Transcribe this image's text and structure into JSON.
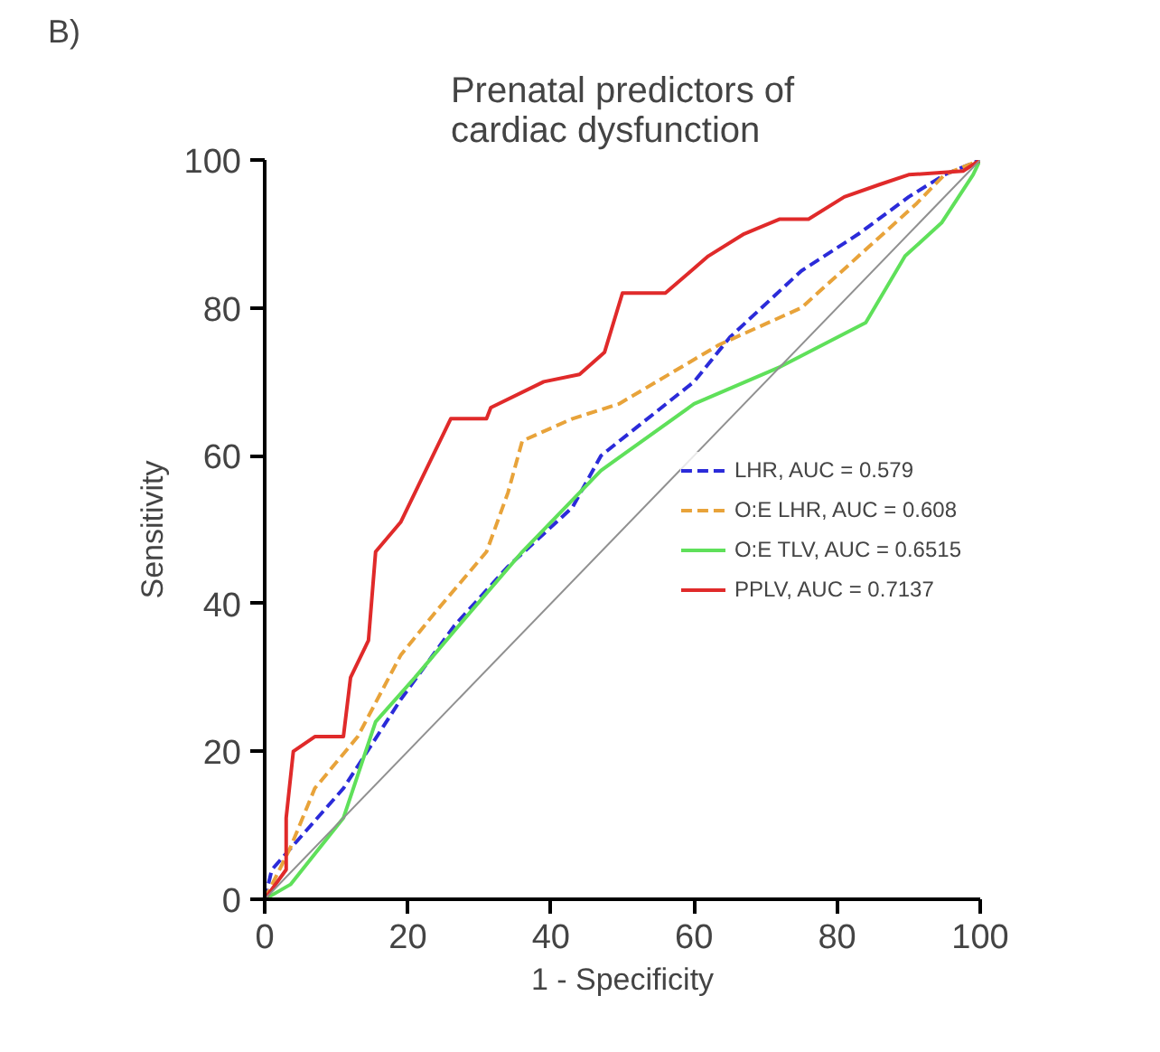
{
  "chart_data": {
    "type": "line",
    "title": "Prenatal predictors of\ncardiac dysfunction",
    "xlabel": "1 - Specificity",
    "ylabel": "Sensitivity",
    "annotations": [
      "B)"
    ],
    "xlim": [
      0,
      100
    ],
    "ylim": [
      0,
      100
    ],
    "xticks": [
      0,
      20,
      40,
      60,
      80,
      100
    ],
    "yticks": [
      0,
      20,
      40,
      60,
      80,
      100
    ],
    "grid": false,
    "legend": "right",
    "series": [
      {
        "name": "LHR, AUC = 0.579",
        "color": "#2b2bd9",
        "line_style": "dashed",
        "x": [
          0,
          1,
          11,
          19,
          26.5,
          34,
          43,
          47,
          60,
          65,
          75,
          83,
          90,
          95,
          100
        ],
        "values": [
          0,
          4,
          15,
          27,
          37,
          45,
          53,
          60,
          70,
          76,
          85,
          90,
          95,
          98,
          100
        ]
      },
      {
        "name": "O:E LHR, AUC = 0.608",
        "color": "#e8a33a",
        "line_style": "dashed",
        "x": [
          0,
          3.6,
          7,
          13,
          19,
          24,
          31,
          34,
          36,
          43,
          49.5,
          63.5,
          75,
          91,
          95,
          100
        ],
        "values": [
          0,
          7,
          15,
          22,
          33,
          39,
          47,
          55,
          62,
          65,
          67,
          75,
          80,
          94,
          98,
          100
        ]
      },
      {
        "name": "O:E TLV, AUC = 0.6515",
        "color": "#5fe05a",
        "line_style": "solid",
        "x": [
          0,
          3.6,
          11,
          15.5,
          21,
          28,
          36,
          44,
          47,
          60,
          72,
          84,
          89.5,
          94.6,
          99,
          100
        ],
        "values": [
          0,
          2,
          11,
          24,
          30,
          38,
          47,
          55,
          58,
          67,
          72,
          78,
          87,
          91.5,
          98,
          100
        ]
      },
      {
        "name": "PPLV, AUC = 0.7137",
        "color": "#e02a2a",
        "line_style": "solid",
        "x": [
          0,
          3,
          3,
          4,
          7,
          11,
          12,
          14.5,
          15.5,
          19,
          23,
          26,
          31,
          31.6,
          39,
          44,
          47.5,
          50,
          56,
          62,
          67,
          72,
          76,
          81,
          86,
          90,
          97.6,
          100
        ],
        "values": [
          0,
          4,
          11,
          20,
          22,
          22,
          30,
          35,
          47,
          51,
          59,
          65,
          65,
          66.5,
          70,
          71,
          74,
          82,
          82,
          87,
          90,
          92,
          92,
          95,
          96.7,
          98,
          98.5,
          100
        ]
      },
      {
        "color": "#909090",
        "line_style": "solid",
        "x": [
          0,
          100
        ],
        "values": [
          0,
          100
        ]
      }
    ]
  }
}
